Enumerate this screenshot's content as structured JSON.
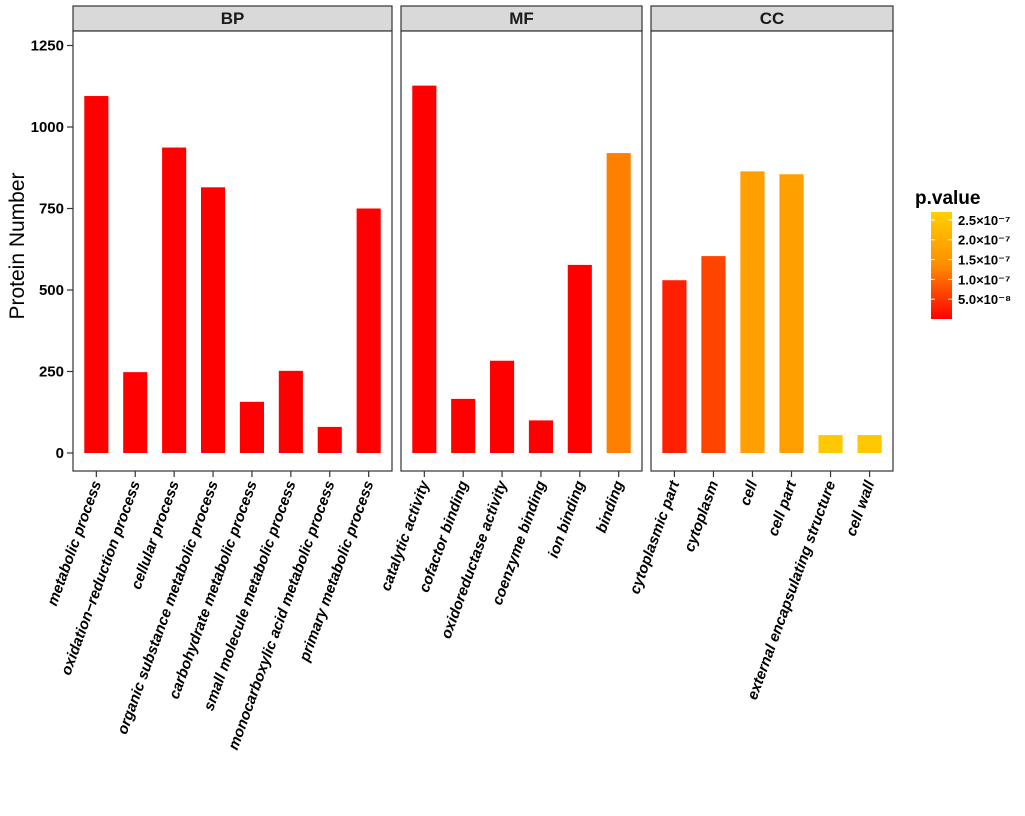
{
  "chart_data": {
    "type": "bar",
    "ylabel": "Protein Number",
    "ylim": [
      -50,
      1300
    ],
    "yticks": [
      0,
      250,
      500,
      750,
      1000,
      1250
    ],
    "grid": false,
    "legend_position": "right",
    "legend": {
      "title": "p.value",
      "labels": [
        "2.5×10⁻⁷",
        "2.0×10⁻⁷",
        "1.5×10⁻⁷",
        "1.0×10⁻⁷",
        "5.0×10⁻⁸"
      ],
      "values": [
        2.5e-07,
        2e-07,
        1.5e-07,
        1e-07,
        5e-08
      ],
      "min": 0,
      "max": 2.7e-07,
      "low_color": "#ff0000",
      "mid_color": "#ff8c00",
      "high_color": "#ffd000"
    },
    "panels": [
      {
        "title": "BP",
        "categories": [
          "metabolic process",
          "oxidation−reduction process",
          "cellular process",
          "organic substance metabolic process",
          "carbohydrate metabolic process",
          "small molecule metabolic process",
          "monocarboxylic acid metabolic process",
          "primary metabolic process"
        ],
        "values": [
          1095,
          248,
          937,
          815,
          157,
          252,
          80,
          750
        ],
        "colors": [
          "#ff0000",
          "#ff0000",
          "#ff0000",
          "#ff0000",
          "#ff0000",
          "#ff0000",
          "#ff0000",
          "#ff0000"
        ]
      },
      {
        "title": "MF",
        "categories": [
          "catalytic activity",
          "cofactor binding",
          "oxidoreductase activity",
          "coenzyme binding",
          "ion binding",
          "binding"
        ],
        "values": [
          1127,
          166,
          283,
          100,
          577,
          920
        ],
        "colors": [
          "#ff0000",
          "#ff0000",
          "#ff0000",
          "#ff0000",
          "#ff0000",
          "#ff8000"
        ]
      },
      {
        "title": "CC",
        "categories": [
          "cytoplasmic part",
          "cytoplasm",
          "cell",
          "cell part",
          "external encapsulating structure",
          "cell wall"
        ],
        "values": [
          530,
          604,
          864,
          855,
          55,
          55
        ],
        "colors": [
          "#ff2000",
          "#ff4400",
          "#ffa000",
          "#ffa000",
          "#ffc800",
          "#ffc800"
        ]
      }
    ]
  }
}
